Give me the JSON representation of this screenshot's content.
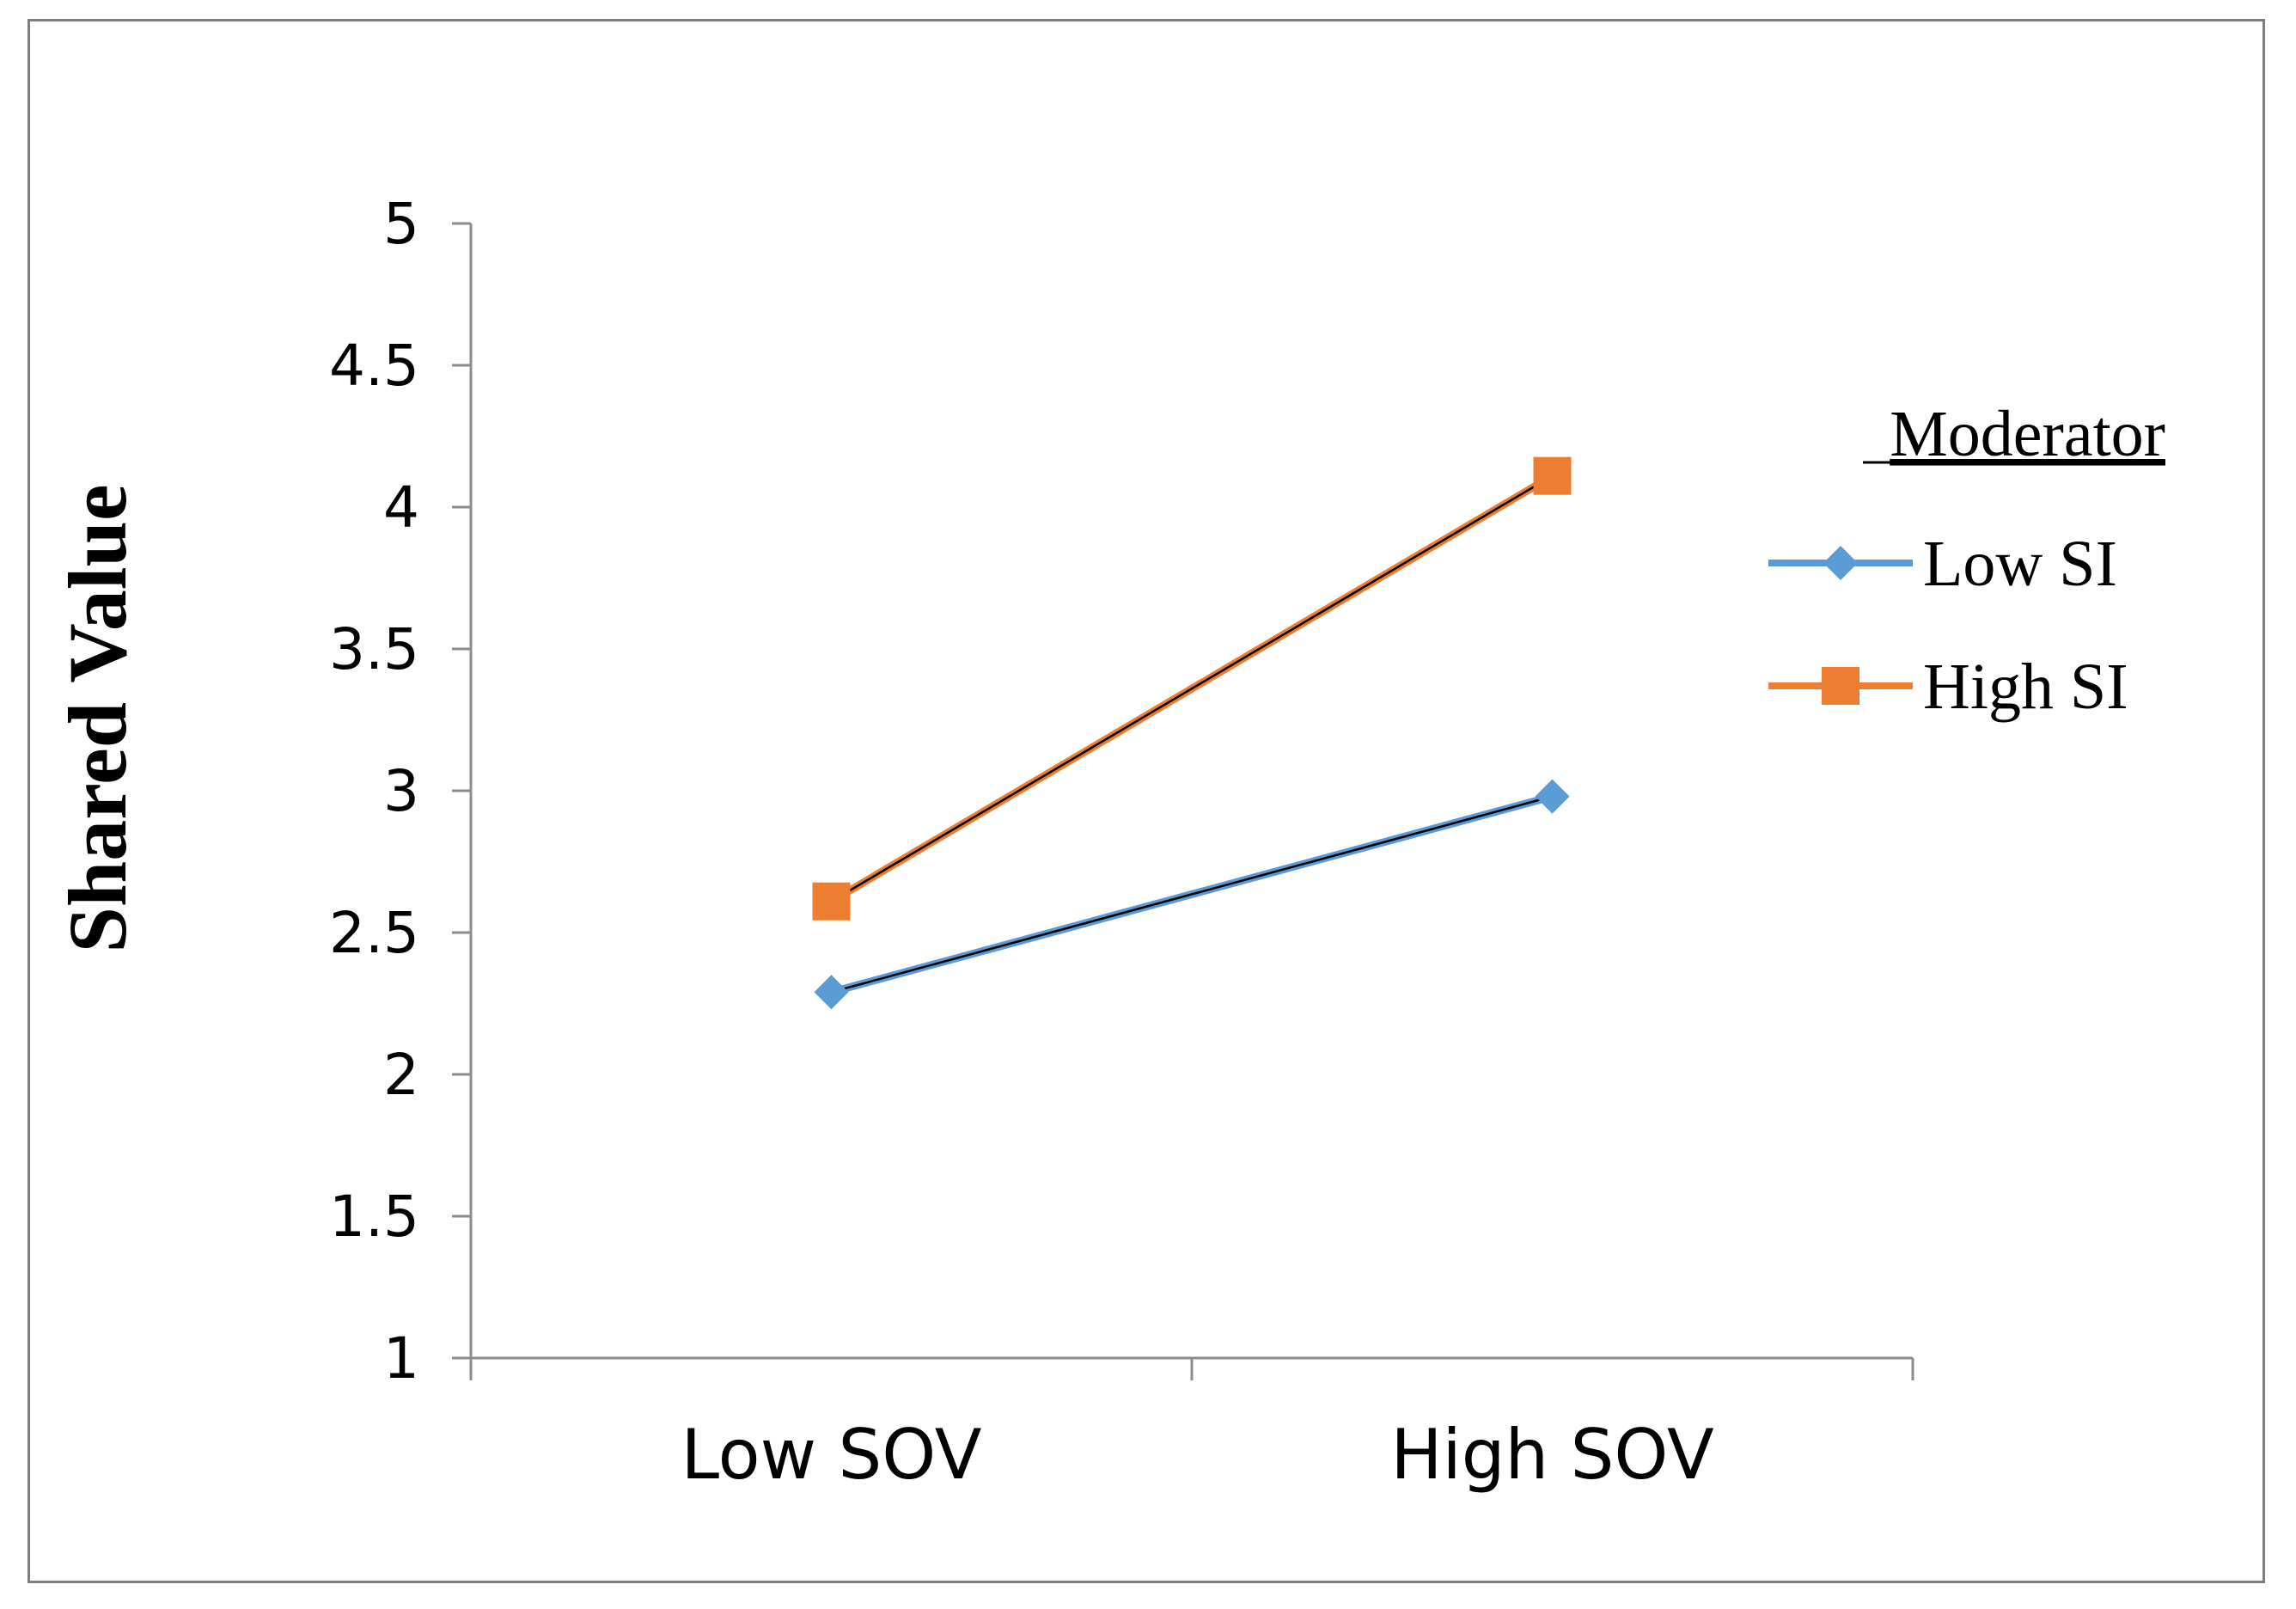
{
  "chart_data": {
    "type": "line",
    "title": "",
    "xlabel": "",
    "ylabel": "Shared Value",
    "categories": [
      "Low SOV",
      "High SOV"
    ],
    "ylim": [
      1,
      5
    ],
    "yticks": [
      "1",
      "1.5",
      "2",
      "2.5",
      "3",
      "3.5",
      "4",
      "4.5",
      "5"
    ],
    "grid": false,
    "legend": {
      "title": "Moderator",
      "position": "right"
    },
    "series": [
      {
        "name": "Low SI",
        "values": [
          2.29,
          2.98
        ],
        "color": "#5b9bd5",
        "marker": "diamond"
      },
      {
        "name": "High SI",
        "values": [
          2.61,
          4.11
        ],
        "color": "#ed7d31",
        "marker": "square"
      }
    ]
  }
}
